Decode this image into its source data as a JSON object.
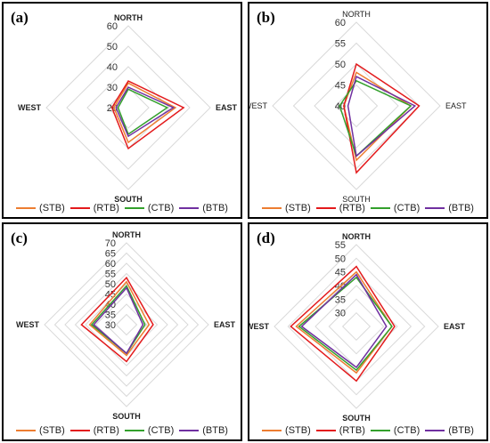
{
  "panels": [
    {
      "label": "(a)"
    },
    {
      "label": "(b)"
    },
    {
      "label": "(c)"
    },
    {
      "label": "(d)"
    }
  ],
  "chart_data": [
    {
      "type": "radar",
      "panel": "(a)",
      "axes": [
        "NORTH",
        "EAST",
        "SOUTH",
        "WEST"
      ],
      "axis_labels_bold": true,
      "ticks": [
        20,
        30,
        40,
        50,
        60
      ],
      "ylim": [
        20,
        60
      ],
      "series": [
        {
          "name": "(STB)",
          "color": "#ed7d31",
          "values": [
            32,
            43,
            37,
            27
          ]
        },
        {
          "name": "(RTB)",
          "color": "#e31a1c",
          "values": [
            33,
            47,
            40,
            28
          ]
        },
        {
          "name": "(CTB)",
          "color": "#33a02c",
          "values": [
            29,
            39,
            33,
            25
          ]
        },
        {
          "name": "(BTB)",
          "color": "#7030a0",
          "values": [
            30,
            42,
            34,
            26
          ]
        }
      ]
    },
    {
      "type": "radar",
      "panel": "(b)",
      "axes": [
        "NORTH",
        "EAST",
        "SOUTH",
        "WEST"
      ],
      "axis_labels_bold": false,
      "ticks": [
        40,
        45,
        50,
        55,
        60
      ],
      "ylim": [
        40,
        60
      ],
      "series": [
        {
          "name": "(STB)",
          "color": "#ed7d31",
          "values": [
            48,
            53,
            53,
            43
          ]
        },
        {
          "name": "(RTB)",
          "color": "#e31a1c",
          "values": [
            50,
            55,
            56,
            43
          ]
        },
        {
          "name": "(CTB)",
          "color": "#33a02c",
          "values": [
            46,
            53,
            52,
            44
          ]
        },
        {
          "name": "(BTB)",
          "color": "#7030a0",
          "values": [
            47,
            54,
            52,
            42
          ]
        }
      ]
    },
    {
      "type": "radar",
      "panel": "(c)",
      "axes": [
        "NORTH",
        "EAST",
        "SOUTH",
        "WEST"
      ],
      "axis_labels_bold": true,
      "ticks": [
        30,
        35,
        40,
        45,
        50,
        55,
        60,
        65,
        70
      ],
      "ylim": [
        30,
        70
      ],
      "series": [
        {
          "name": "(STB)",
          "color": "#ed7d31",
          "values": [
            51,
            41,
            45,
            48
          ]
        },
        {
          "name": "(RTB)",
          "color": "#e31a1c",
          "values": [
            53,
            43,
            48,
            52
          ]
        },
        {
          "name": "(CTB)",
          "color": "#33a02c",
          "values": [
            49,
            39,
            44,
            47
          ]
        },
        {
          "name": "(BTB)",
          "color": "#7030a0",
          "values": [
            48,
            38,
            44,
            46
          ]
        }
      ]
    },
    {
      "type": "radar",
      "panel": "(d)",
      "axes": [
        "NORTH",
        "EAST",
        "SOUTH",
        "WEST"
      ],
      "axis_labels_bold": true,
      "ticks": [
        30,
        35,
        40,
        45,
        50,
        55
      ],
      "ylim": [
        25,
        55
      ],
      "series": [
        {
          "name": "(STB)",
          "color": "#ed7d31",
          "values": [
            45,
            38,
            42,
            47
          ]
        },
        {
          "name": "(RTB)",
          "color": "#e31a1c",
          "values": [
            47,
            39,
            45,
            49
          ]
        },
        {
          "name": "(CTB)",
          "color": "#33a02c",
          "values": [
            43,
            38,
            41,
            46
          ]
        },
        {
          "name": "(BTB)",
          "color": "#7030a0",
          "values": [
            44,
            36,
            40,
            45
          ]
        }
      ]
    }
  ]
}
